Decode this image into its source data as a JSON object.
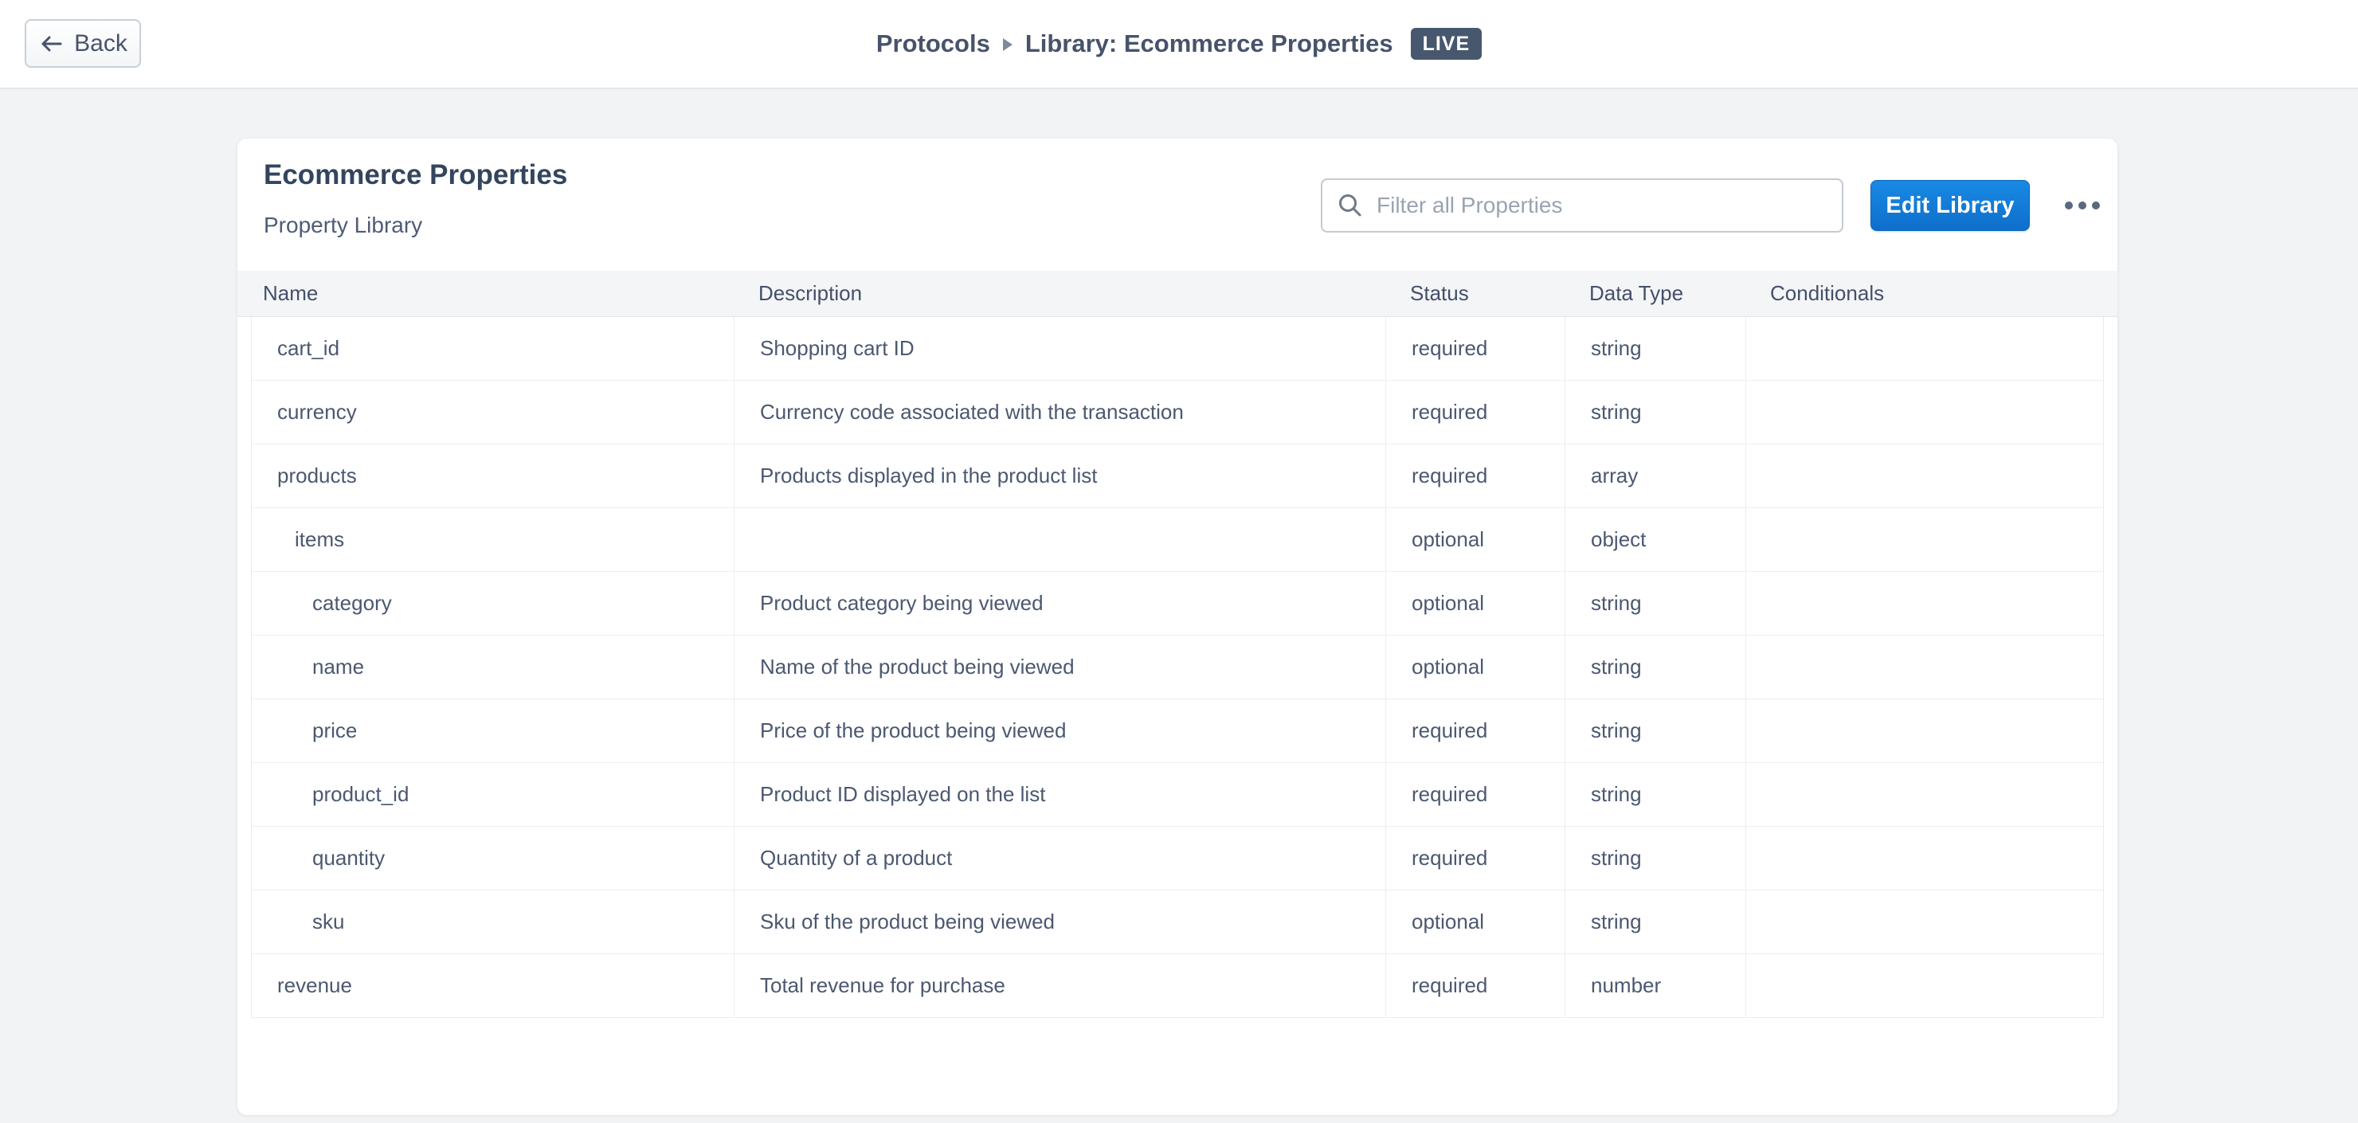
{
  "topbar": {
    "back_label": "Back",
    "breadcrumb": {
      "root": "Protocols",
      "current": "Library: Ecommerce Properties",
      "badge": "LIVE"
    }
  },
  "library": {
    "title": "Ecommerce Properties",
    "subtitle": "Property Library",
    "filter_placeholder": "Filter all Properties",
    "filter_value": "",
    "edit_button_label": "Edit Library"
  },
  "table": {
    "columns": [
      "Name",
      "Description",
      "Status",
      "Data Type",
      "Conditionals"
    ],
    "rows": [
      {
        "name": "cart_id",
        "description": "Shopping cart ID",
        "status": "required",
        "data_type": "string",
        "conditionals": "",
        "indent": 0
      },
      {
        "name": "currency",
        "description": "Currency code associated with the transaction",
        "status": "required",
        "data_type": "string",
        "conditionals": "",
        "indent": 0
      },
      {
        "name": "products",
        "description": "Products displayed in the product list",
        "status": "required",
        "data_type": "array",
        "conditionals": "",
        "indent": 0
      },
      {
        "name": "items",
        "description": "",
        "status": "optional",
        "data_type": "object",
        "conditionals": "",
        "indent": 1
      },
      {
        "name": "category",
        "description": "Product category being viewed",
        "status": "optional",
        "data_type": "string",
        "conditionals": "",
        "indent": 2
      },
      {
        "name": "name",
        "description": "Name of the product being viewed",
        "status": "optional",
        "data_type": "string",
        "conditionals": "",
        "indent": 2
      },
      {
        "name": "price",
        "description": "Price of the product being viewed",
        "status": "required",
        "data_type": "string",
        "conditionals": "",
        "indent": 2
      },
      {
        "name": "product_id",
        "description": "Product ID displayed on the list",
        "status": "required",
        "data_type": "string",
        "conditionals": "",
        "indent": 2
      },
      {
        "name": "quantity",
        "description": "Quantity of a product",
        "status": "required",
        "data_type": "string",
        "conditionals": "",
        "indent": 2
      },
      {
        "name": "sku",
        "description": "Sku of the product being viewed",
        "status": "optional",
        "data_type": "string",
        "conditionals": "",
        "indent": 2
      },
      {
        "name": "revenue",
        "description": "Total revenue for purchase",
        "status": "required",
        "data_type": "number",
        "conditionals": "",
        "indent": 0
      }
    ]
  },
  "colors": {
    "accent_blue": "#1080DC",
    "badge_bg": "#47586E",
    "page_bg": "#F1F3F5",
    "text_slate": "#4B5870"
  }
}
